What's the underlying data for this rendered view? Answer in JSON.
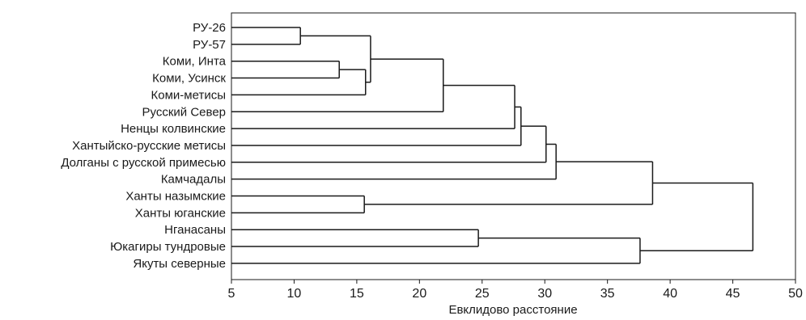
{
  "chart_data": {
    "type": "dendrogram",
    "xlabel": "Евклидово расстояние",
    "xlim": [
      5,
      50
    ],
    "xticks": [
      5,
      10,
      15,
      20,
      25,
      30,
      35,
      40,
      45,
      50
    ],
    "leaves": [
      "РУ-26",
      "РУ-57",
      "Коми, Инта",
      "Коми, Усинск",
      "Коми-метисы",
      "Русский Север",
      "Ненцы колвинские",
      "Хантыйско-русские метисы",
      "Долганы с русской примесью",
      "Камчадалы",
      "Ханты назымские",
      "Ханты юганские",
      "Нганасаны",
      "Юкагиры тундровые",
      "Якуты северные"
    ],
    "merges": [
      {
        "a": "L0",
        "b": "L1",
        "height": 10.5
      },
      {
        "a": "L2",
        "b": "L3",
        "height": 13.6
      },
      {
        "a": "M1",
        "b": "L4",
        "height": 15.7
      },
      {
        "a": "M0",
        "b": "M2",
        "height": 16.1
      },
      {
        "a": "M3",
        "b": "L5",
        "height": 21.9
      },
      {
        "a": "M4",
        "b": "L6",
        "height": 27.6
      },
      {
        "a": "M5",
        "b": "L7",
        "height": 28.1
      },
      {
        "a": "M6",
        "b": "L8",
        "height": 30.1
      },
      {
        "a": "M7",
        "b": "L9",
        "height": 30.9
      },
      {
        "a": "L10",
        "b": "L11",
        "height": 15.6
      },
      {
        "a": "M8",
        "b": "M9",
        "height": 38.6
      },
      {
        "a": "L12",
        "b": "L13",
        "height": 24.7
      },
      {
        "a": "M11",
        "b": "L14",
        "height": 37.6
      },
      {
        "a": "M10",
        "b": "M12",
        "height": 46.6
      }
    ]
  }
}
